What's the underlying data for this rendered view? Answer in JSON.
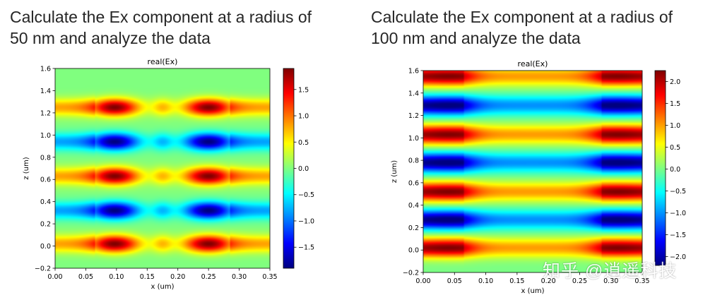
{
  "headings": {
    "left": {
      "line1": "Calculate the Ex component at a radius of",
      "line2": "50 nm and analyze the data"
    },
    "right": {
      "line1": "Calculate the Ex component at a radius of",
      "line2": "100 nm and analyze the data"
    }
  },
  "watermark": "知乎 @逍遥科技",
  "chart_data": [
    {
      "type": "heatmap",
      "title": "real(Ex)",
      "xlabel": "x (um)",
      "ylabel": "z (um)",
      "xlim": [
        0.0,
        0.35
      ],
      "ylim": [
        -0.2,
        1.6
      ],
      "xticks": [
        0.0,
        0.05,
        0.1,
        0.15,
        0.2,
        0.25,
        0.3,
        0.35
      ],
      "xtick_labels": [
        "0.00",
        "0.05",
        "0.10",
        "0.15",
        "0.20",
        "0.25",
        "0.30",
        "0.35"
      ],
      "yticks": [
        -0.2,
        0.0,
        0.2,
        0.4,
        0.6,
        0.8,
        1.0,
        1.2,
        1.4,
        1.6
      ],
      "ytick_labels": [
        "−0.2",
        "0.0",
        "0.2",
        "0.4",
        "0.6",
        "0.8",
        "1.0",
        "1.2",
        "1.4",
        "1.6"
      ],
      "colormap": "jet",
      "colorbar": {
        "vmin": -1.9,
        "vmax": 1.9,
        "ticks": [
          1.5,
          1.0,
          0.5,
          0.0,
          -0.5,
          -1.0,
          -1.5
        ],
        "tick_labels": [
          "1.5",
          "1.0",
          "0.5",
          "0.0",
          "−0.5",
          "−1.0",
          "−1.5"
        ]
      },
      "bands_z": [
        0.02,
        0.32,
        0.63,
        0.94,
        1.25
      ],
      "band_signs": [
        1,
        -1,
        1,
        -1,
        1
      ],
      "band_width_um": 0.055,
      "hotspot_x": [
        0.097,
        0.25
      ],
      "hotspot_width_um": 0.028,
      "center_x": 0.175,
      "fringe_level": 0.38,
      "center_level": 0.05,
      "center_spot_level": 0.3,
      "center_spot_width_um": 0.012,
      "bg_level": 0.0
    },
    {
      "type": "heatmap",
      "title": "real(Ex)",
      "xlabel": "x (um)",
      "ylabel": "z (um)",
      "xlim": [
        0.0,
        0.35
      ],
      "ylim": [
        -0.2,
        1.6
      ],
      "xticks": [
        0.0,
        0.05,
        0.1,
        0.15,
        0.2,
        0.25,
        0.3,
        0.35
      ],
      "xtick_labels": [
        "0.00",
        "0.05",
        "0.10",
        "0.15",
        "0.20",
        "0.25",
        "0.30",
        "0.35"
      ],
      "yticks": [
        -0.2,
        0.0,
        0.2,
        0.4,
        0.6,
        0.8,
        1.0,
        1.2,
        1.4,
        1.6
      ],
      "ytick_labels": [
        "−0.2",
        "0.0",
        "0.2",
        "0.4",
        "0.6",
        "0.8",
        "1.0",
        "1.2",
        "1.4",
        "1.6"
      ],
      "colormap": "jet",
      "colorbar": {
        "vmin": -2.2,
        "vmax": 2.25,
        "ticks": [
          2.0,
          1.5,
          1.0,
          0.5,
          0.0,
          -0.5,
          -1.0,
          -1.5,
          -2.0
        ],
        "tick_labels": [
          "2.0",
          "1.5",
          "1.0",
          "0.5",
          "0.0",
          "−0.5",
          "−1.0",
          "−1.5",
          "−2.0"
        ]
      },
      "bands_z": [
        0.02,
        0.27,
        0.52,
        0.78,
        1.03,
        1.29,
        1.55
      ],
      "band_signs": [
        1,
        -1,
        1,
        -1,
        1,
        -1,
        1
      ],
      "band_width_um": 0.06,
      "hotspot_x": [
        0.04,
        0.31
      ],
      "hotspot_width_um": 0.03,
      "center_x": 0.175,
      "fringe_level": 0.45,
      "center_level": 0.45,
      "center_spot_level": 0.0,
      "center_spot_width_um": 0.012,
      "bg_level": 0.0
    }
  ]
}
